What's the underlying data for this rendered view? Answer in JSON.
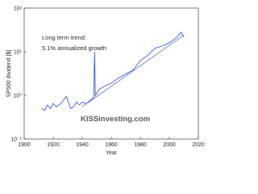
{
  "chart_data": {
    "type": "line",
    "xlabel": "Year",
    "ylabel": "SP500 dividend [$]",
    "annotations": [
      "Long term trend:",
      "5.1% annualized growth"
    ],
    "watermark": "KISSinvesting.com",
    "xlim": [
      1900,
      2020
    ],
    "xticks": [
      1900,
      1920,
      1940,
      1960,
      1980,
      2000,
      2020
    ],
    "ylim": [
      0.1,
      100
    ],
    "log_y": true,
    "yticks": [
      {
        "value": 0.1,
        "label": "10⁻¹"
      },
      {
        "value": 1,
        "label": "10⁰"
      },
      {
        "value": 10,
        "label": "10¹"
      },
      {
        "value": 100,
        "label": "10²"
      }
    ],
    "series": [
      {
        "color": "#1f3fd8",
        "x": [
          1912,
          1914,
          1916,
          1918,
          1920,
          1922,
          1924,
          1926,
          1929,
          1932,
          1934,
          1936,
          1938,
          1940,
          1943,
          1946,
          1948,
          1948.5,
          1949,
          1952,
          1955,
          1958,
          1960,
          1965,
          1970,
          1975,
          1980,
          1985,
          1990,
          1995,
          2000,
          2005,
          2008,
          2010
        ],
        "values": [
          0.5,
          0.45,
          0.6,
          0.5,
          0.65,
          0.55,
          0.6,
          0.7,
          0.95,
          0.5,
          0.55,
          0.7,
          0.6,
          0.7,
          0.65,
          0.8,
          0.9,
          10,
          1.0,
          1.4,
          1.6,
          1.8,
          1.9,
          2.5,
          3.1,
          3.8,
          6.2,
          8.2,
          12,
          13.5,
          16,
          21,
          28,
          22
        ]
      },
      {
        "color": "#4a6fa8",
        "x": [
          1940,
          2010
        ],
        "values": [
          0.55,
          24
        ]
      }
    ]
  }
}
